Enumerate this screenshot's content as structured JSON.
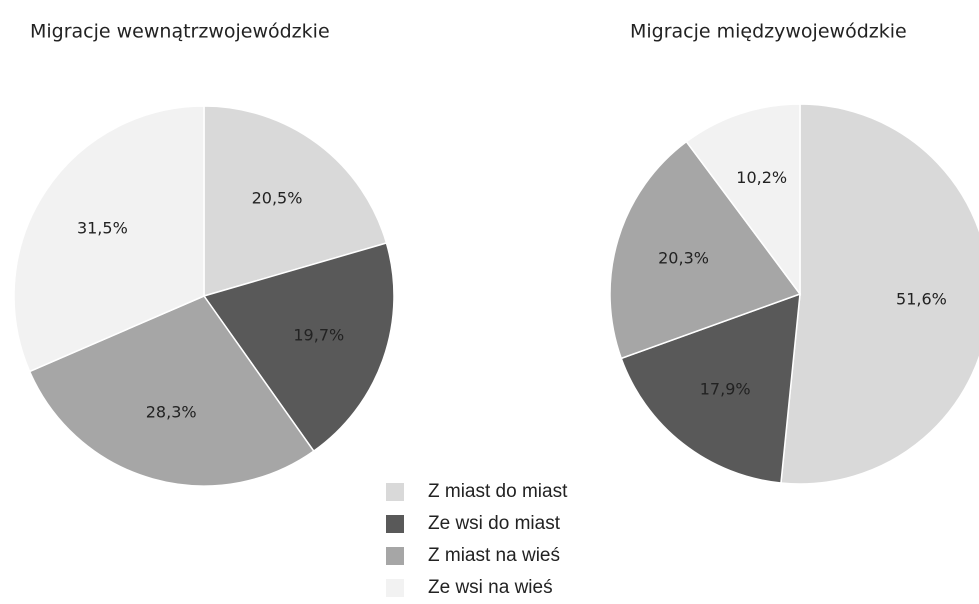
{
  "legend": {
    "categories": [
      "Z miast do miast",
      "Ze wsi do miast",
      "Z miast na wieś",
      "Ze wsi na wieś"
    ],
    "colors": [
      "#d9d9d9",
      "#595959",
      "#a6a6a6",
      "#f2f2f2"
    ]
  },
  "chart_data": [
    {
      "type": "pie",
      "title": "Migracje wewnątrzwojewódzkie",
      "values": [
        20.5,
        19.7,
        28.3,
        31.5
      ],
      "value_labels": [
        "20,5%",
        "19,7%",
        "28,3%",
        "31,5%"
      ]
    },
    {
      "type": "pie",
      "title": "Migracje międzywojewódzkie",
      "values": [
        51.6,
        17.9,
        20.3,
        10.2
      ],
      "value_labels": [
        "51,6%",
        "17,9%",
        "20,3%",
        "10,2%"
      ]
    }
  ]
}
